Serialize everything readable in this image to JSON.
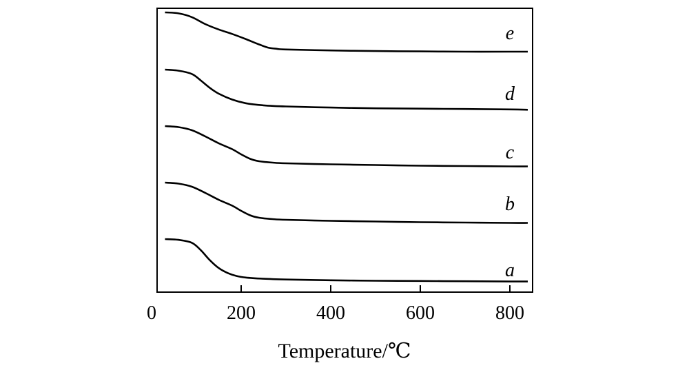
{
  "chart_data": {
    "type": "line",
    "title": "",
    "xlabel": "Temperature/℃",
    "ylabel": "",
    "xlim": [
      0,
      850
    ],
    "xticks": [
      0,
      200,
      400,
      600,
      800
    ],
    "x_tick_labels": [
      "0",
      "200",
      "400",
      "600",
      "800"
    ],
    "y_ticks_shown": false,
    "grid": false,
    "line_color": "#000000",
    "note": "Curves vertically offset; no y-axis scale shown. Values are relative mass (%).",
    "series": [
      {
        "name": "a",
        "x": [
          30,
          60,
          90,
          110,
          130,
          150,
          170,
          190,
          210,
          250,
          300,
          400,
          500,
          600,
          700,
          800,
          840
        ],
        "y": [
          100,
          99.7,
          98.5,
          95.5,
          91.5,
          88.3,
          86.3,
          85.1,
          84.5,
          84.0,
          83.7,
          83.4,
          83.2,
          83.1,
          83.0,
          82.9,
          82.9
        ]
      },
      {
        "name": "b",
        "x": [
          30,
          60,
          90,
          120,
          150,
          180,
          200,
          220,
          240,
          270,
          300,
          400,
          500,
          600,
          700,
          800,
          840
        ],
        "y": [
          100,
          99.7,
          98.8,
          97.0,
          95.0,
          93.3,
          91.8,
          90.5,
          89.8,
          89.4,
          89.2,
          88.9,
          88.7,
          88.5,
          88.4,
          88.3,
          88.3
        ]
      },
      {
        "name": "c",
        "x": [
          30,
          60,
          90,
          120,
          150,
          180,
          200,
          220,
          240,
          270,
          300,
          400,
          500,
          600,
          700,
          800,
          840
        ],
        "y": [
          100,
          99.7,
          98.8,
          97.0,
          95.0,
          93.3,
          91.8,
          90.5,
          89.8,
          89.4,
          89.2,
          88.9,
          88.7,
          88.5,
          88.4,
          88.3,
          88.3
        ]
      },
      {
        "name": "d",
        "x": [
          30,
          60,
          90,
          110,
          130,
          150,
          180,
          210,
          250,
          300,
          400,
          500,
          600,
          700,
          800,
          840
        ],
        "y": [
          100,
          99.7,
          98.8,
          97.0,
          95.0,
          93.4,
          91.8,
          90.8,
          90.2,
          89.9,
          89.6,
          89.4,
          89.3,
          89.2,
          89.1,
          89.0
        ]
      },
      {
        "name": "e",
        "x": [
          30,
          60,
          90,
          120,
          150,
          180,
          210,
          240,
          260,
          280,
          300,
          400,
          500,
          600,
          700,
          800,
          840
        ],
        "y": [
          100,
          99.7,
          98.5,
          96.3,
          94.6,
          93.2,
          91.6,
          89.9,
          88.9,
          88.5,
          88.3,
          88.0,
          87.8,
          87.7,
          87.6,
          87.6,
          87.6
        ]
      }
    ]
  }
}
